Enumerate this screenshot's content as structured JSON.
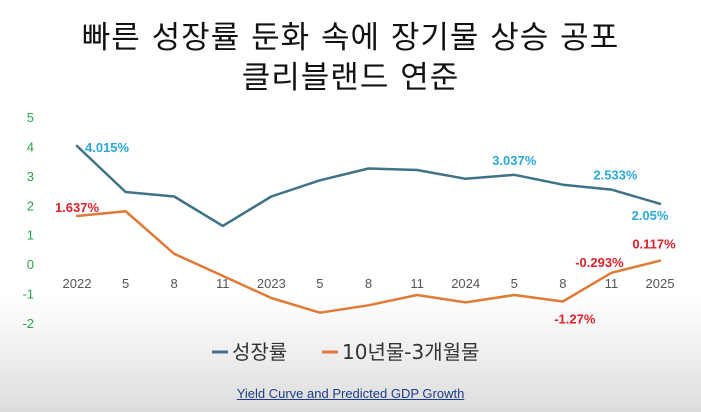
{
  "title": {
    "line1": "빠른 성장률 둔화 속에 장기물 상승 공포",
    "line2": "클리블랜드 연준"
  },
  "caption": "Yield Curve and Predicted GDP Growth",
  "chart_data": {
    "type": "line",
    "categories": [
      "2022",
      "5",
      "8",
      "11",
      "2023",
      "5",
      "8",
      "11",
      "2024",
      "5",
      "8",
      "11",
      "2025"
    ],
    "ylim": [
      -2,
      5
    ],
    "yticks": [
      5,
      4,
      3,
      2,
      1,
      0,
      -1,
      -2
    ],
    "grid": false,
    "legend_position": "bottom",
    "series": [
      {
        "name": "성장률",
        "color": "#3f7286",
        "values": [
          4.015,
          2.45,
          2.3,
          1.3,
          2.3,
          2.85,
          3.25,
          3.2,
          2.9,
          3.037,
          2.7,
          2.533,
          2.05
        ]
      },
      {
        "name": "10년물-3개월물",
        "color": "#e07a35",
        "values": [
          1.637,
          1.8,
          0.35,
          -0.4,
          -1.15,
          -1.65,
          -1.4,
          -1.05,
          -1.3,
          -1.05,
          -1.27,
          -0.293,
          0.117
        ]
      }
    ],
    "annotations": [
      {
        "series": 0,
        "index": 0,
        "text": "4.015%",
        "color": "#2aa9e0"
      },
      {
        "series": 0,
        "index": 9,
        "text": "3.037%",
        "color": "#2aa9e0"
      },
      {
        "series": 0,
        "index": 11,
        "text": "2.533%",
        "color": "#2aa9e0"
      },
      {
        "series": 0,
        "index": 12,
        "text": "2.05%",
        "color": "#2aa9e0"
      },
      {
        "series": 1,
        "index": 0,
        "text": "1.637%",
        "color": "#e0202a"
      },
      {
        "series": 1,
        "index": 11,
        "text": "-0.293%",
        "color": "#e0202a"
      },
      {
        "series": 1,
        "index": 10,
        "text": "-1.27%",
        "color": "#e0202a"
      },
      {
        "series": 1,
        "index": 12,
        "text": "0.117%",
        "color": "#e0202a"
      }
    ],
    "tick_color": "#2aa64a"
  }
}
